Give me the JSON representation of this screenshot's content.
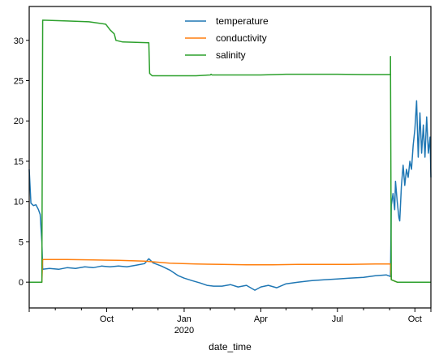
{
  "chart_data": {
    "type": "line",
    "xlabel": "date_time",
    "ylabel": "",
    "x_range": [
      "2019-07-01",
      "2020-10-20"
    ],
    "ylim": [
      -3.2,
      34.2
    ],
    "yticks": [
      0,
      5,
      10,
      15,
      20,
      25,
      30
    ],
    "xticks_major": [
      {
        "date": "2019-10-01",
        "label": "Oct",
        "sublabel": ""
      },
      {
        "date": "2020-01-01",
        "label": "Jan",
        "sublabel": "2020"
      },
      {
        "date": "2020-04-01",
        "label": "Apr",
        "sublabel": ""
      },
      {
        "date": "2020-07-01",
        "label": "Jul",
        "sublabel": ""
      },
      {
        "date": "2020-10-01",
        "label": "Oct",
        "sublabel": ""
      }
    ],
    "xticks_minor": [
      "2019-08-01",
      "2019-09-01",
      "2019-11-01",
      "2019-12-01",
      "2020-02-01",
      "2020-03-01",
      "2020-05-01",
      "2020-06-01",
      "2020-08-01",
      "2020-09-01"
    ],
    "grid": false,
    "legend_position": "top-center",
    "series": [
      {
        "name": "temperature",
        "color": "#1f77b4",
        "points": [
          [
            "2019-07-01",
            14.0
          ],
          [
            "2019-07-03",
            9.8
          ],
          [
            "2019-07-06",
            9.5
          ],
          [
            "2019-07-09",
            9.6
          ],
          [
            "2019-07-12",
            9.0
          ],
          [
            "2019-07-14",
            8.4
          ],
          [
            "2019-07-16",
            5.0
          ],
          [
            "2019-07-17",
            1.6
          ],
          [
            "2019-07-25",
            1.7
          ],
          [
            "2019-08-05",
            1.6
          ],
          [
            "2019-08-15",
            1.8
          ],
          [
            "2019-08-25",
            1.7
          ],
          [
            "2019-09-05",
            1.9
          ],
          [
            "2019-09-15",
            1.8
          ],
          [
            "2019-09-25",
            2.0
          ],
          [
            "2019-10-05",
            1.9
          ],
          [
            "2019-10-15",
            2.0
          ],
          [
            "2019-10-25",
            1.9
          ],
          [
            "2019-11-05",
            2.1
          ],
          [
            "2019-11-15",
            2.3
          ],
          [
            "2019-11-20",
            2.9
          ],
          [
            "2019-11-25",
            2.4
          ],
          [
            "2019-12-05",
            2.0
          ],
          [
            "2019-12-15",
            1.5
          ],
          [
            "2019-12-25",
            0.8
          ],
          [
            "2020-01-01",
            0.5
          ],
          [
            "2020-01-10",
            0.2
          ],
          [
            "2020-01-20",
            -0.1
          ],
          [
            "2020-01-28",
            -0.4
          ],
          [
            "2020-02-05",
            -0.5
          ],
          [
            "2020-02-15",
            -0.5
          ],
          [
            "2020-02-25",
            -0.3
          ],
          [
            "2020-03-05",
            -0.6
          ],
          [
            "2020-03-15",
            -0.4
          ],
          [
            "2020-03-25",
            -1.0
          ],
          [
            "2020-04-01",
            -0.6
          ],
          [
            "2020-04-10",
            -0.4
          ],
          [
            "2020-04-20",
            -0.7
          ],
          [
            "2020-05-01",
            -0.2
          ],
          [
            "2020-05-15",
            0.0
          ],
          [
            "2020-06-01",
            0.2
          ],
          [
            "2020-06-15",
            0.3
          ],
          [
            "2020-07-01",
            0.4
          ],
          [
            "2020-07-15",
            0.5
          ],
          [
            "2020-08-01",
            0.6
          ],
          [
            "2020-08-15",
            0.8
          ],
          [
            "2020-08-28",
            0.9
          ],
          [
            "2020-09-02",
            0.7
          ],
          [
            "2020-09-03",
            9.5
          ],
          [
            "2020-09-05",
            11.0
          ],
          [
            "2020-09-07",
            9.0
          ],
          [
            "2020-09-08",
            12.5
          ],
          [
            "2020-09-10",
            10.0
          ],
          [
            "2020-09-12",
            8.0
          ],
          [
            "2020-09-13",
            7.6
          ],
          [
            "2020-09-15",
            12.0
          ],
          [
            "2020-09-17",
            14.5
          ],
          [
            "2020-09-19",
            12.0
          ],
          [
            "2020-09-21",
            14.0
          ],
          [
            "2020-09-23",
            13.0
          ],
          [
            "2020-09-25",
            15.0
          ],
          [
            "2020-09-27",
            14.0
          ],
          [
            "2020-09-29",
            17.0
          ],
          [
            "2020-10-01",
            19.0
          ],
          [
            "2020-10-03",
            22.5
          ],
          [
            "2020-10-05",
            15.5
          ],
          [
            "2020-10-07",
            21.0
          ],
          [
            "2020-10-09",
            16.0
          ],
          [
            "2020-10-11",
            19.5
          ],
          [
            "2020-10-13",
            15.5
          ],
          [
            "2020-10-15",
            20.5
          ],
          [
            "2020-10-17",
            16.0
          ],
          [
            "2020-10-19",
            18.0
          ],
          [
            "2020-10-20",
            13.0
          ]
        ]
      },
      {
        "name": "conductivity",
        "color": "#ff7f0e",
        "points": [
          [
            "2019-07-01",
            0.0
          ],
          [
            "2019-07-16",
            0.0
          ],
          [
            "2019-07-17",
            2.8
          ],
          [
            "2019-08-15",
            2.8
          ],
          [
            "2019-09-15",
            2.75
          ],
          [
            "2019-10-15",
            2.7
          ],
          [
            "2019-11-15",
            2.6
          ],
          [
            "2019-12-15",
            2.35
          ],
          [
            "2020-01-15",
            2.25
          ],
          [
            "2020-02-15",
            2.2
          ],
          [
            "2020-03-15",
            2.15
          ],
          [
            "2020-04-15",
            2.15
          ],
          [
            "2020-05-15",
            2.2
          ],
          [
            "2020-06-15",
            2.2
          ],
          [
            "2020-07-15",
            2.2
          ],
          [
            "2020-08-15",
            2.25
          ],
          [
            "2020-09-02",
            2.25
          ],
          [
            "2020-09-03",
            0.3
          ],
          [
            "2020-09-10",
            0.0
          ],
          [
            "2020-10-20",
            0.0
          ]
        ]
      },
      {
        "name": "salinity",
        "color": "#2ca02c",
        "points": [
          [
            "2019-07-01",
            0.0
          ],
          [
            "2019-07-16",
            0.0
          ],
          [
            "2019-07-17",
            32.5
          ],
          [
            "2019-08-15",
            32.4
          ],
          [
            "2019-09-10",
            32.3
          ],
          [
            "2019-09-30",
            32.0
          ],
          [
            "2019-10-05",
            31.3
          ],
          [
            "2019-10-10",
            30.8
          ],
          [
            "2019-10-12",
            30.0
          ],
          [
            "2019-10-20",
            29.8
          ],
          [
            "2019-11-20",
            29.7
          ],
          [
            "2019-11-21",
            25.9
          ],
          [
            "2019-11-24",
            25.6
          ],
          [
            "2019-12-15",
            25.6
          ],
          [
            "2020-01-01",
            25.6
          ],
          [
            "2020-01-15",
            25.6
          ],
          [
            "2020-02-01",
            25.7
          ],
          [
            "2020-02-02",
            25.8
          ],
          [
            "2020-02-03",
            25.7
          ],
          [
            "2020-03-01",
            25.7
          ],
          [
            "2020-04-01",
            25.7
          ],
          [
            "2020-05-01",
            25.8
          ],
          [
            "2020-06-01",
            25.8
          ],
          [
            "2020-07-01",
            25.8
          ],
          [
            "2020-08-01",
            25.75
          ],
          [
            "2020-09-02",
            25.75
          ],
          [
            "2020-09-02",
            28.0
          ],
          [
            "2020-09-03",
            0.3
          ],
          [
            "2020-09-10",
            0.0
          ],
          [
            "2020-10-20",
            0.0
          ]
        ]
      }
    ]
  }
}
